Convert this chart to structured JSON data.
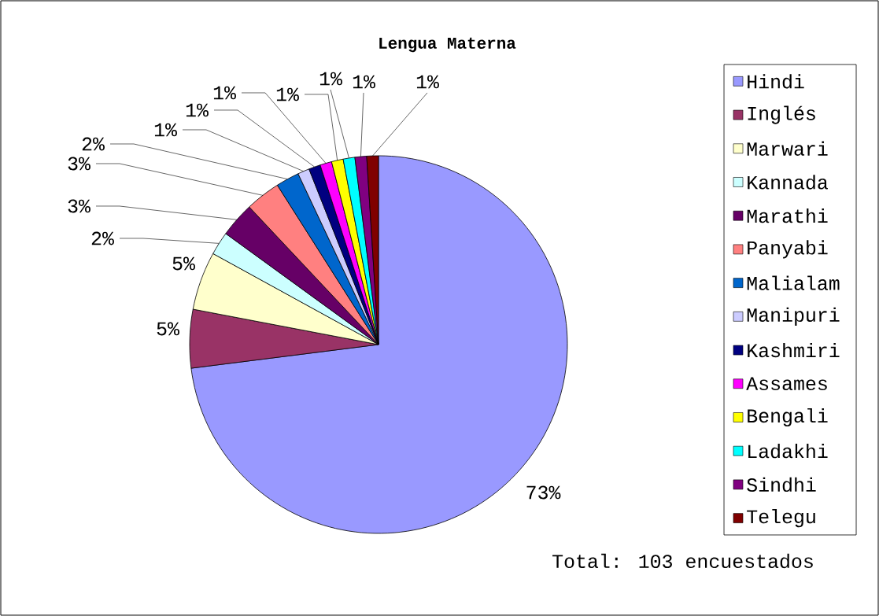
{
  "chart_data": {
    "type": "pie",
    "title": "Lengua Materna",
    "categories": [
      "Hindi",
      "Inglés",
      "Marwari",
      "Kannada",
      "Marathi",
      "Panyabi",
      "Malialam",
      "Manipuri",
      "Kashmiri",
      "Assames",
      "Bengali",
      "Ladakhi",
      "Sindhi",
      "Telegu"
    ],
    "values": [
      73,
      5,
      5,
      2,
      3,
      3,
      2,
      1,
      1,
      1,
      1,
      1,
      1,
      1
    ],
    "colors": [
      "#9999ff",
      "#993366",
      "#ffffcc",
      "#ccffff",
      "#660066",
      "#ff8080",
      "#0066cc",
      "#ccccff",
      "#000080",
      "#ff00ff",
      "#ffff00",
      "#00ffff",
      "#800080",
      "#800000"
    ],
    "value_labels": [
      "73%",
      "5%",
      "5%",
      "2%",
      "3%",
      "3%",
      "2%",
      "1%",
      "1%",
      "1%",
      "1%",
      "1%",
      "1%",
      "1%"
    ],
    "legend": "right",
    "annotations": [
      "Total: 103 encuestados"
    ]
  }
}
